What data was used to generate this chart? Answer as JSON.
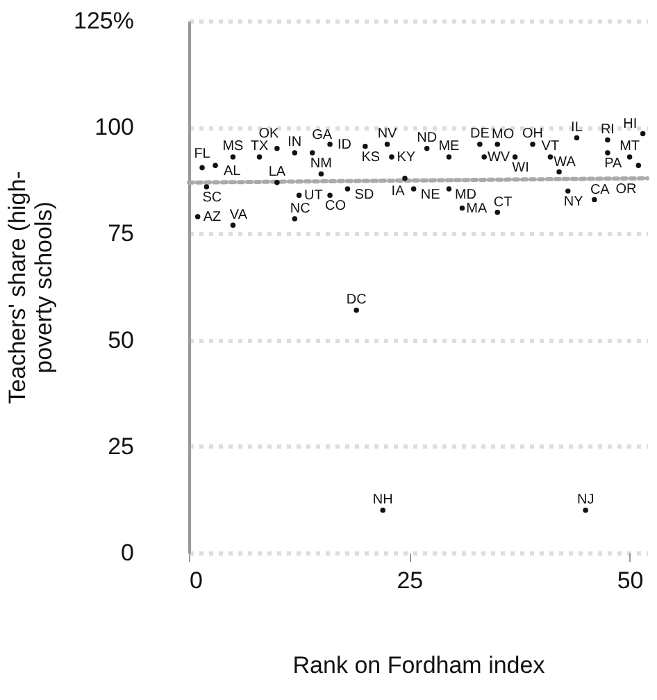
{
  "chart_data": {
    "type": "scatter",
    "xlabel": "Rank on Fordham index",
    "ylabel": "Teachers' share (high-poverty schools)",
    "xlim": [
      0,
      52
    ],
    "ylim": [
      0,
      125
    ],
    "xticks": [
      0,
      25,
      50
    ],
    "yticks": [
      0,
      25,
      50,
      75,
      100,
      {
        "value": 125,
        "label": "125%"
      }
    ],
    "grid": "y",
    "series": [
      {
        "color": "#111111",
        "marker": "circle",
        "x": [
          1.5,
          3,
          5,
          8,
          10,
          12,
          14,
          2,
          10,
          15,
          12.5,
          16,
          18,
          1,
          5,
          12,
          16,
          20,
          22.5,
          27,
          23,
          24.5,
          25.5,
          29.5,
          31,
          35,
          33,
          35,
          39,
          29.5,
          33.5,
          37,
          41,
          42,
          43,
          46,
          44,
          47.5,
          51.5,
          47.5,
          50,
          51,
          19,
          22,
          45
        ],
        "values": [
          90.5,
          91,
          93,
          93,
          95,
          94,
          94,
          86,
          87,
          89,
          84,
          84,
          85.5,
          79,
          77,
          78.5,
          96,
          95.5,
          96,
          95,
          93,
          88,
          85.5,
          85.5,
          81,
          80,
          96,
          96,
          96,
          93,
          93,
          93,
          93,
          89.5,
          85,
          83,
          97.5,
          97,
          98.5,
          94,
          93,
          91,
          57,
          10,
          10
        ],
        "value_labels": [
          "FL",
          "AL",
          "MS",
          "TX",
          "OK",
          "IN",
          "GA",
          "SC",
          "LA",
          "NM",
          "UT",
          "CO",
          "SD",
          "AZ",
          "VA",
          "NC",
          "ID",
          "KS",
          "NV",
          "ND",
          "KY",
          "IA",
          "NE",
          "MD",
          "MA",
          "CT",
          "DE",
          "MO",
          "OH",
          "ME",
          "WV",
          "WI",
          "VT",
          "WA",
          "NY",
          "CA",
          "IL",
          "RI",
          "HI",
          "PA",
          "MT",
          "OR",
          "DC",
          "NH",
          "NJ"
        ]
      },
      {
        "type": "line",
        "color": "#aaaaaa",
        "line_style": "dotted",
        "x": [
          0,
          52
        ],
        "values": [
          87,
          88
        ]
      }
    ]
  }
}
